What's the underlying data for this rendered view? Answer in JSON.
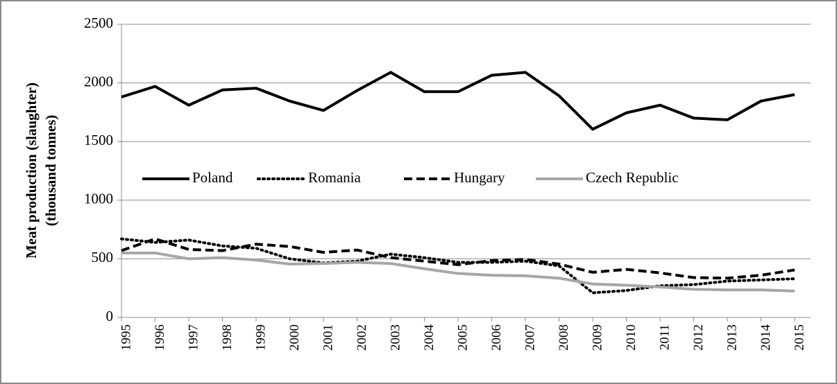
{
  "chart_data": {
    "type": "line",
    "y_label": [
      "Meat production (slaughter)",
      "(thousand tonnes)"
    ],
    "categories": [
      "1995",
      "1996",
      "1997",
      "1998",
      "1999",
      "2000",
      "2001",
      "2002",
      "2003",
      "2004",
      "2005",
      "2006",
      "2007",
      "2008",
      "2009",
      "2010",
      "2011",
      "2012",
      "2013",
      "2014",
      "2015"
    ],
    "series": [
      {
        "name": "Poland",
        "color": "#000000",
        "dash": "solid",
        "values": [
          1880,
          1970,
          1810,
          1940,
          1955,
          1845,
          1765,
          1935,
          2090,
          1925,
          1925,
          2065,
          2090,
          1890,
          1605,
          1745,
          1810,
          1700,
          1685,
          1845,
          1900
        ]
      },
      {
        "name": "Romania",
        "color": "#000000",
        "dash": "dotted",
        "values": [
          670,
          640,
          660,
          610,
          590,
          500,
          465,
          480,
          540,
          510,
          470,
          470,
          480,
          440,
          210,
          230,
          270,
          280,
          310,
          320,
          330
        ]
      },
      {
        "name": "Hungary",
        "color": "#000000",
        "dash": "dashed",
        "values": [
          570,
          670,
          580,
          570,
          625,
          605,
          555,
          575,
          510,
          480,
          450,
          485,
          495,
          455,
          385,
          410,
          380,
          340,
          335,
          360,
          405
        ]
      },
      {
        "name": "Czech Republic",
        "color": "#a6a6a6",
        "dash": "solid",
        "values": [
          550,
          550,
          500,
          510,
          490,
          455,
          460,
          470,
          460,
          415,
          375,
          360,
          355,
          335,
          285,
          275,
          260,
          240,
          235,
          235,
          225
        ]
      }
    ],
    "ylim": [
      0,
      2500
    ],
    "yticks": [
      0,
      500,
      1000,
      1500,
      2000,
      2500
    ],
    "grid": true,
    "legend": "inside-middle"
  }
}
